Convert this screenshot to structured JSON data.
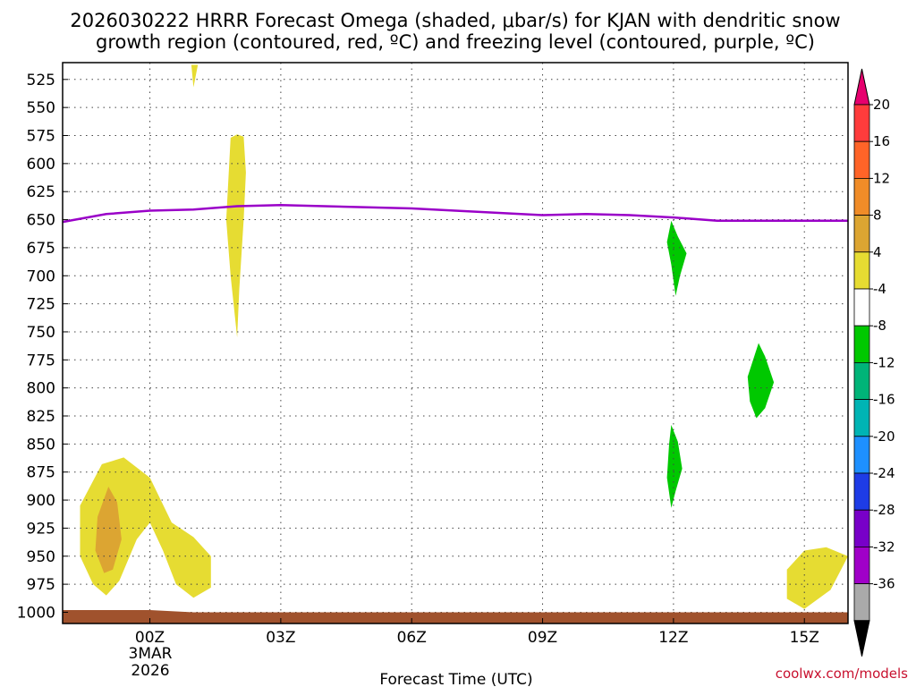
{
  "chart_data": {
    "type": "contour",
    "title_lines": [
      "2026030222 HRRR Forecast Omega (shaded, μbar/s) for KJAN with dendritic snow",
      "growth region (contoured, red, ºC) and freezing level (contoured, purple, ºC)"
    ],
    "xlabel": "Forecast Time (UTC)",
    "credit": "coolwx.com/models",
    "x_ticks": [
      "00Z",
      "03Z",
      "06Z",
      "09Z",
      "12Z",
      "15Z"
    ],
    "x_subticks": [
      "3MAR",
      "2026"
    ],
    "x_range_hours": [
      -2,
      16
    ],
    "y_ticks": [
      "525",
      "550",
      "575",
      "600",
      "625",
      "650",
      "675",
      "700",
      "725",
      "750",
      "775",
      "800",
      "825",
      "850",
      "875",
      "900",
      "925",
      "950",
      "975",
      "1000"
    ],
    "y_range_hPa": [
      510,
      1010
    ],
    "freezing_level": {
      "color": "#9a00c8",
      "points": [
        [
          -2,
          652
        ],
        [
          -1,
          645
        ],
        [
          0,
          642
        ],
        [
          1,
          641
        ],
        [
          2,
          638
        ],
        [
          3,
          637
        ],
        [
          4,
          638
        ],
        [
          5,
          639
        ],
        [
          6,
          640
        ],
        [
          7,
          642
        ],
        [
          8,
          644
        ],
        [
          9,
          646
        ],
        [
          10,
          645
        ],
        [
          11,
          646
        ],
        [
          12,
          648
        ],
        [
          13,
          651
        ],
        [
          14,
          651
        ],
        [
          15,
          651
        ],
        [
          16,
          651
        ]
      ]
    },
    "omega_features": [
      {
        "level": 4,
        "color": "#e6dc32",
        "points": [
          [
            0.95,
            512
          ],
          [
            1.1,
            512
          ],
          [
            1.0,
            532
          ]
        ]
      },
      {
        "level": 4,
        "color": "#e6dc32",
        "points": [
          [
            1.75,
            650
          ],
          [
            1.85,
            577
          ],
          [
            2.0,
            574
          ],
          [
            2.15,
            576
          ],
          [
            2.2,
            608
          ],
          [
            2.15,
            650
          ],
          [
            2.05,
            712
          ],
          [
            2.0,
            755
          ],
          [
            1.85,
            700
          ]
        ]
      },
      {
        "level": 4,
        "color": "#e6dc32",
        "points": [
          [
            -1.6,
            905
          ],
          [
            -1.1,
            868
          ],
          [
            -0.6,
            862
          ],
          [
            0.0,
            880
          ],
          [
            0.5,
            920
          ],
          [
            1.0,
            933
          ],
          [
            1.4,
            950
          ],
          [
            1.4,
            978
          ],
          [
            1.0,
            987
          ],
          [
            0.6,
            975
          ],
          [
            0.3,
            945
          ],
          [
            0.0,
            920
          ],
          [
            -0.3,
            935
          ],
          [
            -0.7,
            972
          ],
          [
            -1.0,
            985
          ],
          [
            -1.3,
            975
          ],
          [
            -1.6,
            950
          ]
        ]
      },
      {
        "level": 8,
        "color": "#dca532",
        "points": [
          [
            -1.2,
            915
          ],
          [
            -0.95,
            888
          ],
          [
            -0.75,
            902
          ],
          [
            -0.65,
            935
          ],
          [
            -0.85,
            962
          ],
          [
            -1.05,
            965
          ],
          [
            -1.25,
            945
          ]
        ]
      },
      {
        "level": 4,
        "color": "#e6dc32",
        "points": [
          [
            14.6,
            962
          ],
          [
            15.0,
            945
          ],
          [
            15.5,
            942
          ],
          [
            16.0,
            950
          ],
          [
            15.6,
            980
          ],
          [
            15.0,
            997
          ],
          [
            14.6,
            988
          ]
        ]
      },
      {
        "level": -4,
        "color": "#00c800",
        "points": [
          [
            11.95,
            651
          ],
          [
            12.1,
            665
          ],
          [
            12.3,
            680
          ],
          [
            12.15,
            700
          ],
          [
            12.05,
            718
          ],
          [
            11.95,
            690
          ],
          [
            11.85,
            670
          ]
        ]
      },
      {
        "level": -4,
        "color": "#00c800",
        "points": [
          [
            13.7,
            790
          ],
          [
            13.95,
            760
          ],
          [
            14.1,
            772
          ],
          [
            14.3,
            795
          ],
          [
            14.1,
            818
          ],
          [
            13.9,
            827
          ],
          [
            13.75,
            812
          ]
        ]
      },
      {
        "level": -4,
        "color": "#00c800",
        "points": [
          [
            11.95,
            833
          ],
          [
            12.1,
            848
          ],
          [
            12.2,
            872
          ],
          [
            12.05,
            892
          ],
          [
            11.95,
            907
          ],
          [
            11.85,
            880
          ],
          [
            11.9,
            850
          ]
        ]
      }
    ],
    "terrain": {
      "color": "#a0522d",
      "points": [
        [
          -2,
          998
        ],
        [
          0,
          998
        ],
        [
          1,
          1000
        ],
        [
          16,
          1000
        ]
      ]
    },
    "grid": true,
    "colorbar": {
      "labels": [
        "20",
        "16",
        "12",
        "8",
        "4",
        "-4",
        "-8",
        "-12",
        "-16",
        "-20",
        "-24",
        "-28",
        "-32",
        "-36"
      ],
      "colors": [
        "#e6006e",
        "#ff3c3c",
        "#ff6428",
        "#f08c28",
        "#dca532",
        "#e6dc32",
        "#ffffff",
        "#00c800",
        "#00b478",
        "#00b4b4",
        "#1e90ff",
        "#1e3ce6",
        "#7800c8",
        "#a000c8",
        "#aaaaaa",
        "#000000"
      ]
    }
  }
}
